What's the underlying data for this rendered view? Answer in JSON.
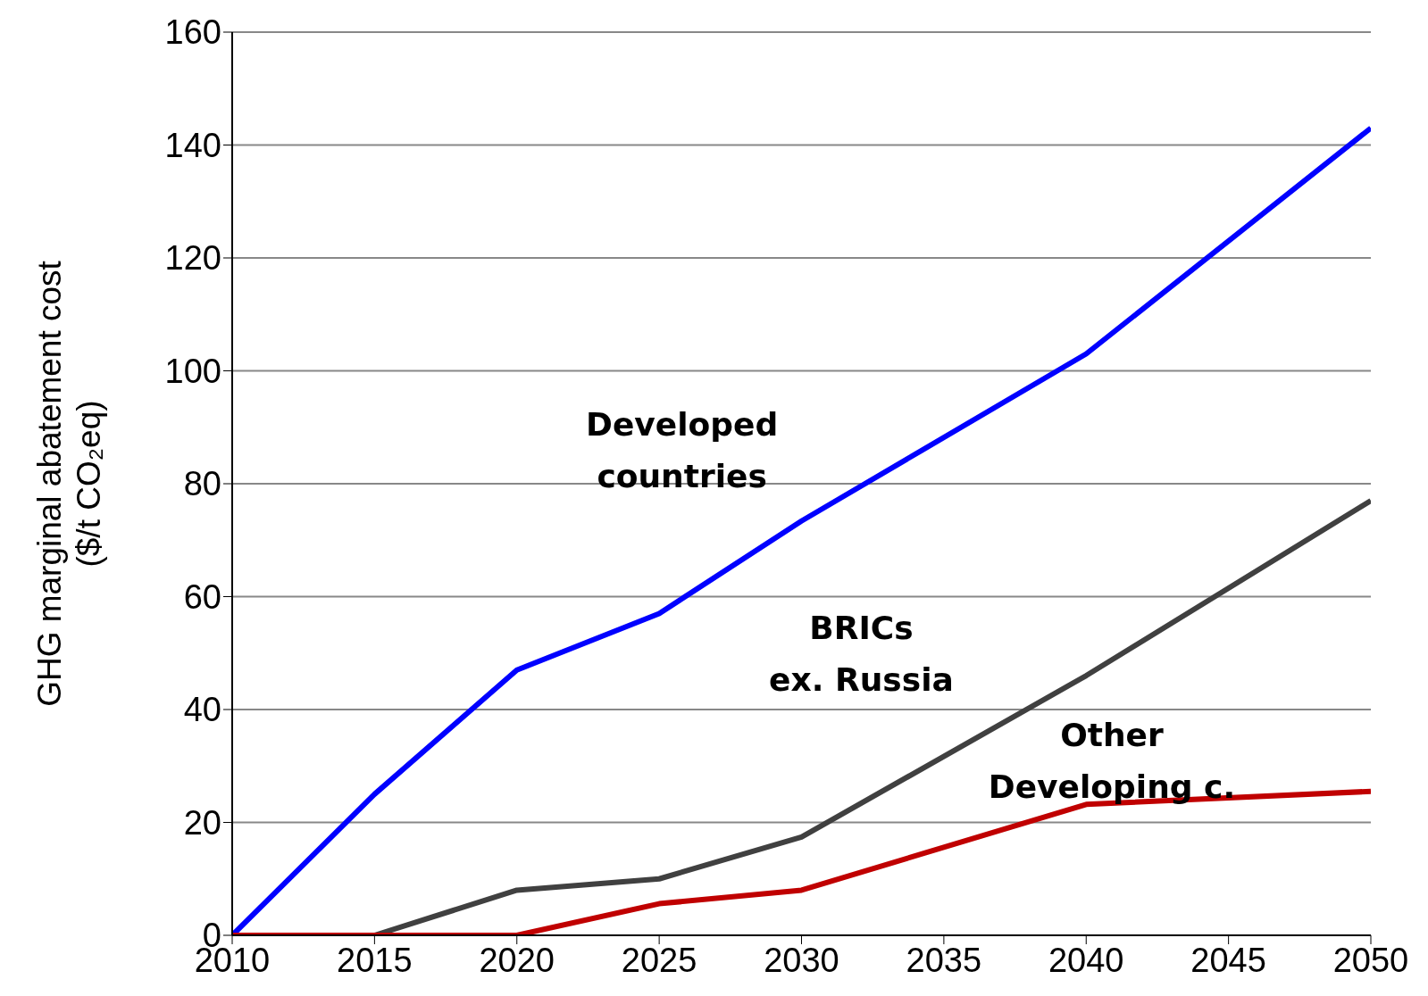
{
  "chart_data": {
    "type": "line",
    "ylabel": "GHG marginal abatement cost ($/t CO₂eq)",
    "x": [
      2010,
      2015,
      2020,
      2025,
      2030,
      2040,
      2050
    ],
    "series": [
      {
        "name": "Developed countries",
        "color": "#0000ff",
        "values": [
          0,
          25,
          47,
          57,
          73.4,
          103,
          143
        ]
      },
      {
        "name": "BRICs ex. Russia",
        "color": "#404040",
        "values": [
          null,
          0,
          8,
          10,
          17.4,
          46,
          77
        ]
      },
      {
        "name": "Other Developing c.",
        "color": "#c00000",
        "values": [
          0,
          0,
          0,
          5.6,
          8,
          23.2,
          25.5
        ]
      }
    ],
    "xlim": [
      2010,
      2050
    ],
    "xticks": [
      2010,
      2015,
      2020,
      2025,
      2030,
      2035,
      2040,
      2045,
      2050
    ],
    "ylim": [
      0,
      160
    ],
    "yticks": [
      0,
      20,
      40,
      60,
      80,
      100,
      120,
      140,
      160
    ],
    "grid": "y",
    "legend": false,
    "marker": "none",
    "line_style": "solid"
  }
}
